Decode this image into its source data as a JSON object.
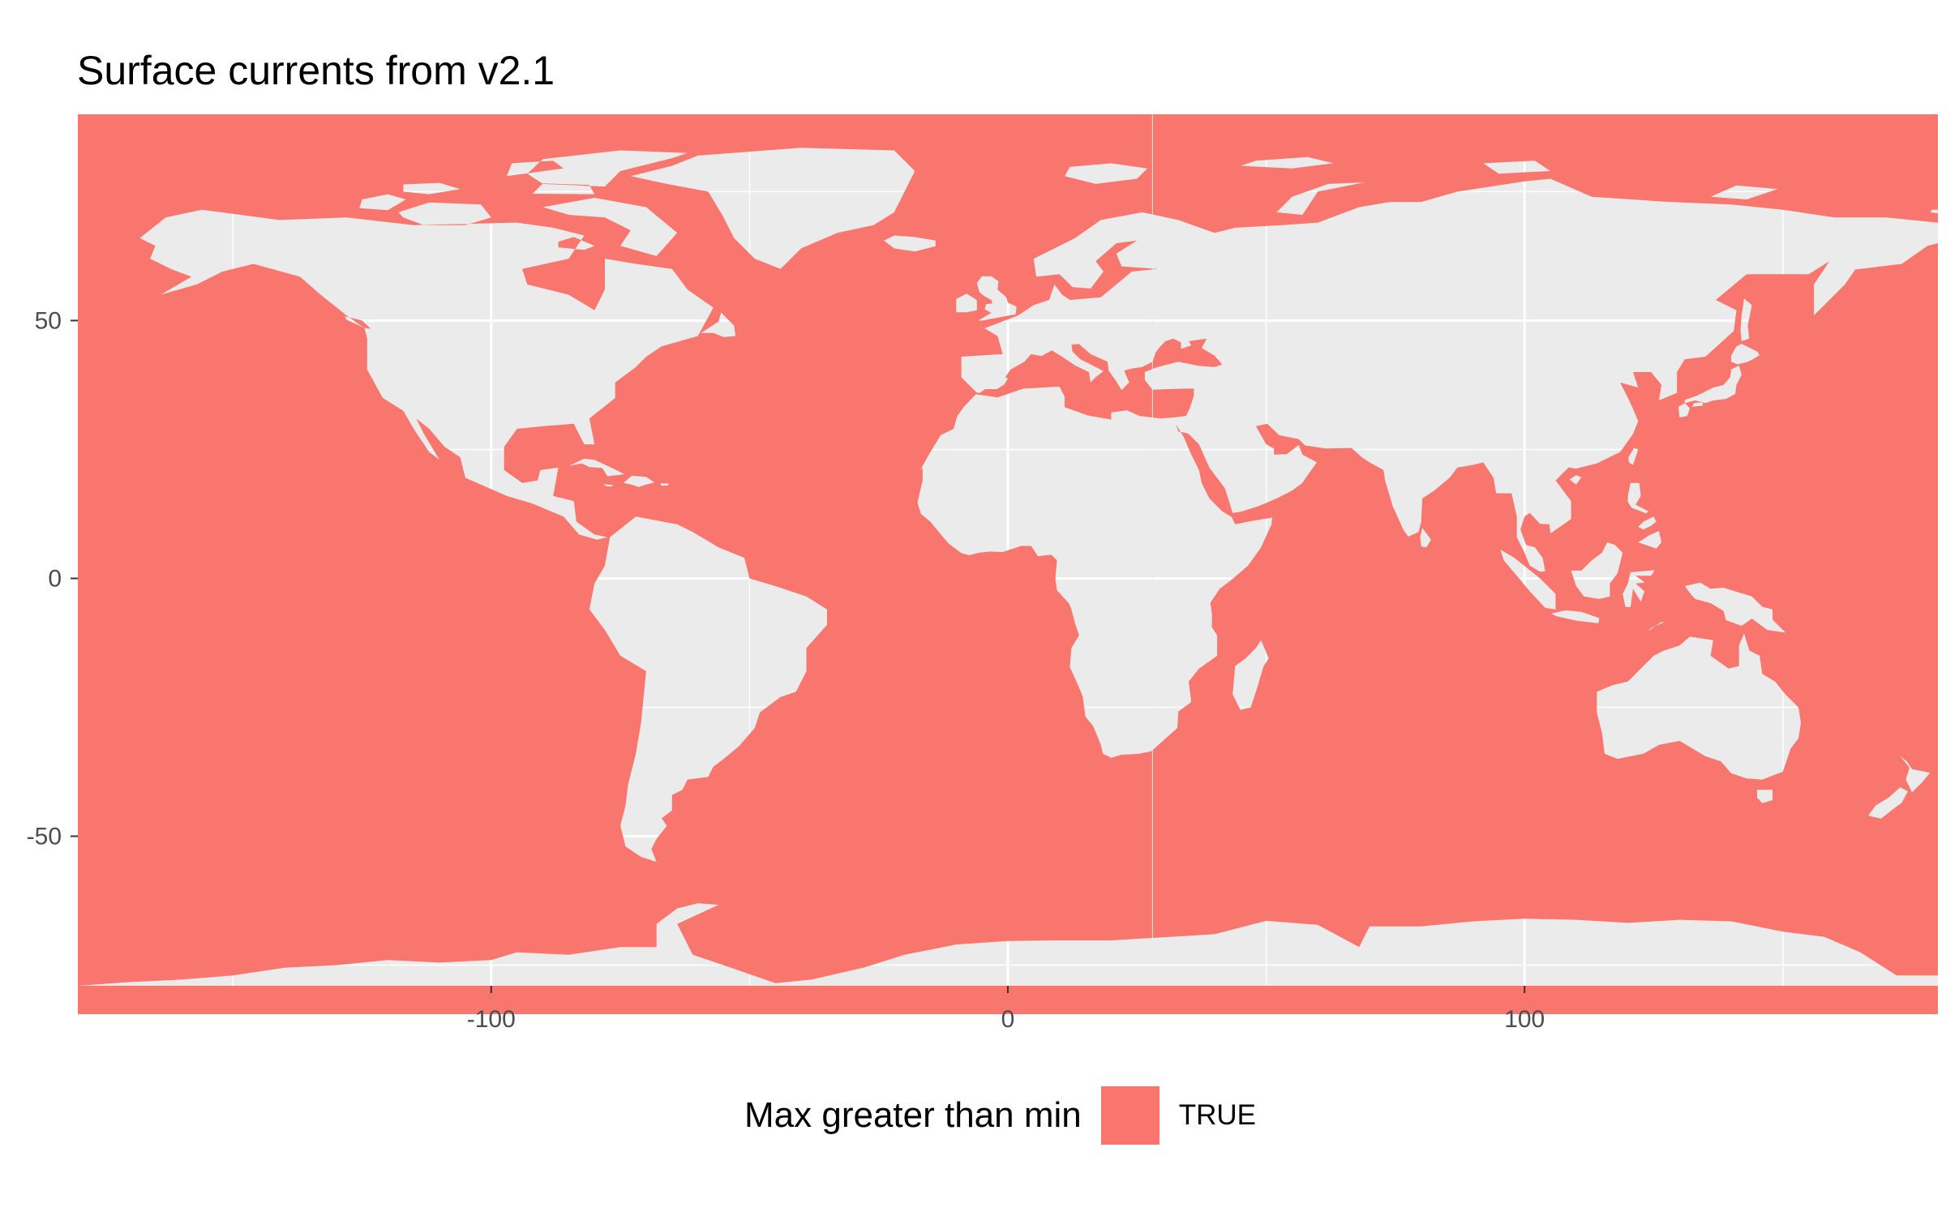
{
  "chart_data": {
    "type": "map",
    "title": "Surface currents from v2.1",
    "xlabel": "",
    "ylabel": "",
    "xlim": [
      -180,
      180
    ],
    "ylim": [
      -79,
      90
    ],
    "x_ticks": [
      -100,
      0,
      100
    ],
    "y_ticks": [
      50,
      0,
      -50
    ],
    "x_tick_labels": [
      "-100",
      "0",
      "100"
    ],
    "y_tick_labels": [
      "50",
      "0",
      "-50"
    ],
    "grid": true,
    "legend_position": "bottom",
    "legend": {
      "title": "Max greater than min",
      "entries": [
        {
          "label": "TRUE",
          "color": "#F8766D"
        }
      ]
    },
    "fill_color": "#F8766D",
    "panel_background": "#EBEBEB"
  }
}
